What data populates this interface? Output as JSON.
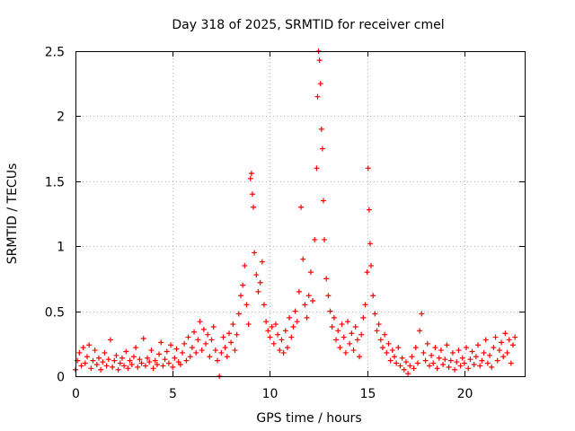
{
  "chart_data": {
    "type": "scatter",
    "title": "Day 318 of 2025, SRMTID for receiver cmel",
    "xlabel": "GPS time / hours",
    "ylabel": "SRMTID / TECUs",
    "xlim": [
      0,
      23.1
    ],
    "ylim": [
      0,
      2.5
    ],
    "xticks": [
      0,
      5,
      10,
      15,
      20
    ],
    "xtick_labels": [
      "0",
      "5",
      "10",
      "15",
      "20"
    ],
    "yticks": [
      0,
      0.5,
      1,
      1.5,
      2,
      2.5
    ],
    "ytick_labels": [
      "0",
      "0.5",
      "1",
      "1.5",
      "2",
      "2.5"
    ],
    "grid": true,
    "marker": "plus",
    "series": [
      {
        "name": "SRMTID",
        "color": "#ff0000",
        "points": [
          [
            0.0,
            0.05
          ],
          [
            0.1,
            0.12
          ],
          [
            0.2,
            0.18
          ],
          [
            0.3,
            0.08
          ],
          [
            0.4,
            0.22
          ],
          [
            0.5,
            0.1
          ],
          [
            0.6,
            0.15
          ],
          [
            0.7,
            0.24
          ],
          [
            0.8,
            0.06
          ],
          [
            0.9,
            0.12
          ],
          [
            1.0,
            0.2
          ],
          [
            1.1,
            0.09
          ],
          [
            1.2,
            0.14
          ],
          [
            1.3,
            0.05
          ],
          [
            1.4,
            0.11
          ],
          [
            1.5,
            0.18
          ],
          [
            1.6,
            0.08
          ],
          [
            1.7,
            0.13
          ],
          [
            1.8,
            0.28
          ],
          [
            1.9,
            0.07
          ],
          [
            2.0,
            0.12
          ],
          [
            2.1,
            0.16
          ],
          [
            2.2,
            0.05
          ],
          [
            2.3,
            0.1
          ],
          [
            2.4,
            0.14
          ],
          [
            2.5,
            0.08
          ],
          [
            2.6,
            0.19
          ],
          [
            2.7,
            0.06
          ],
          [
            2.8,
            0.12
          ],
          [
            2.9,
            0.09
          ],
          [
            3.0,
            0.15
          ],
          [
            3.1,
            0.22
          ],
          [
            3.2,
            0.07
          ],
          [
            3.3,
            0.13
          ],
          [
            3.4,
            0.1
          ],
          [
            3.5,
            0.29
          ],
          [
            3.6,
            0.08
          ],
          [
            3.7,
            0.14
          ],
          [
            3.8,
            0.11
          ],
          [
            3.9,
            0.2
          ],
          [
            4.0,
            0.06
          ],
          [
            4.1,
            0.12
          ],
          [
            4.2,
            0.09
          ],
          [
            4.3,
            0.17
          ],
          [
            4.4,
            0.26
          ],
          [
            4.5,
            0.08
          ],
          [
            4.6,
            0.13
          ],
          [
            4.7,
            0.19
          ],
          [
            4.8,
            0.1
          ],
          [
            4.9,
            0.24
          ],
          [
            5.0,
            0.07
          ],
          [
            5.1,
            0.14
          ],
          [
            5.2,
            0.21
          ],
          [
            5.3,
            0.11
          ],
          [
            5.4,
            0.09
          ],
          [
            5.5,
            0.18
          ],
          [
            5.6,
            0.25
          ],
          [
            5.7,
            0.12
          ],
          [
            5.8,
            0.3
          ],
          [
            5.9,
            0.15
          ],
          [
            6.0,
            0.22
          ],
          [
            6.1,
            0.34
          ],
          [
            6.2,
            0.18
          ],
          [
            6.3,
            0.28
          ],
          [
            6.4,
            0.42
          ],
          [
            6.5,
            0.2
          ],
          [
            6.6,
            0.36
          ],
          [
            6.7,
            0.25
          ],
          [
            6.8,
            0.32
          ],
          [
            6.9,
            0.15
          ],
          [
            7.0,
            0.28
          ],
          [
            7.1,
            0.38
          ],
          [
            7.2,
            0.2
          ],
          [
            7.3,
            0.12
          ],
          [
            7.4,
            0.0
          ],
          [
            7.5,
            0.18
          ],
          [
            7.6,
            0.3
          ],
          [
            7.7,
            0.22
          ],
          [
            7.8,
            0.15
          ],
          [
            7.9,
            0.33
          ],
          [
            8.0,
            0.26
          ],
          [
            8.1,
            0.4
          ],
          [
            8.2,
            0.2
          ],
          [
            8.3,
            0.32
          ],
          [
            8.4,
            0.48
          ],
          [
            8.5,
            0.62
          ],
          [
            8.6,
            0.7
          ],
          [
            8.7,
            0.85
          ],
          [
            8.8,
            0.55
          ],
          [
            8.9,
            0.4
          ],
          [
            9.0,
            1.52
          ],
          [
            9.05,
            1.56
          ],
          [
            9.1,
            1.4
          ],
          [
            9.15,
            1.3
          ],
          [
            9.2,
            0.95
          ],
          [
            9.3,
            0.78
          ],
          [
            9.4,
            0.65
          ],
          [
            9.5,
            0.72
          ],
          [
            9.6,
            0.88
          ],
          [
            9.7,
            0.55
          ],
          [
            9.8,
            0.42
          ],
          [
            9.9,
            0.35
          ],
          [
            10.0,
            0.3
          ],
          [
            10.1,
            0.38
          ],
          [
            10.2,
            0.25
          ],
          [
            10.3,
            0.4
          ],
          [
            10.4,
            0.32
          ],
          [
            10.5,
            0.2
          ],
          [
            10.6,
            0.28
          ],
          [
            10.7,
            0.18
          ],
          [
            10.8,
            0.35
          ],
          [
            10.9,
            0.22
          ],
          [
            11.0,
            0.45
          ],
          [
            11.1,
            0.3
          ],
          [
            11.2,
            0.38
          ],
          [
            11.3,
            0.5
          ],
          [
            11.4,
            0.42
          ],
          [
            11.5,
            0.65
          ],
          [
            11.6,
            1.3
          ],
          [
            11.7,
            0.9
          ],
          [
            11.8,
            0.55
          ],
          [
            11.9,
            0.45
          ],
          [
            12.0,
            0.62
          ],
          [
            12.1,
            0.8
          ],
          [
            12.2,
            0.58
          ],
          [
            12.3,
            1.05
          ],
          [
            12.4,
            1.6
          ],
          [
            12.45,
            2.15
          ],
          [
            12.5,
            2.5
          ],
          [
            12.55,
            2.43
          ],
          [
            12.6,
            2.25
          ],
          [
            12.65,
            1.9
          ],
          [
            12.7,
            1.75
          ],
          [
            12.75,
            1.35
          ],
          [
            12.8,
            1.05
          ],
          [
            12.9,
            0.75
          ],
          [
            13.0,
            0.62
          ],
          [
            13.1,
            0.5
          ],
          [
            13.2,
            0.38
          ],
          [
            13.3,
            0.45
          ],
          [
            13.4,
            0.28
          ],
          [
            13.5,
            0.35
          ],
          [
            13.6,
            0.22
          ],
          [
            13.7,
            0.4
          ],
          [
            13.8,
            0.3
          ],
          [
            13.9,
            0.18
          ],
          [
            14.0,
            0.42
          ],
          [
            14.1,
            0.25
          ],
          [
            14.2,
            0.33
          ],
          [
            14.3,
            0.2
          ],
          [
            14.4,
            0.38
          ],
          [
            14.5,
            0.28
          ],
          [
            14.6,
            0.15
          ],
          [
            14.7,
            0.32
          ],
          [
            14.8,
            0.45
          ],
          [
            14.9,
            0.55
          ],
          [
            15.0,
            0.8
          ],
          [
            15.05,
            1.6
          ],
          [
            15.1,
            1.28
          ],
          [
            15.15,
            1.02
          ],
          [
            15.2,
            0.85
          ],
          [
            15.3,
            0.62
          ],
          [
            15.4,
            0.48
          ],
          [
            15.5,
            0.35
          ],
          [
            15.6,
            0.4
          ],
          [
            15.7,
            0.28
          ],
          [
            15.8,
            0.22
          ],
          [
            15.9,
            0.32
          ],
          [
            16.0,
            0.18
          ],
          [
            16.1,
            0.25
          ],
          [
            16.2,
            0.12
          ],
          [
            16.3,
            0.2
          ],
          [
            16.4,
            0.15
          ],
          [
            16.5,
            0.1
          ],
          [
            16.6,
            0.22
          ],
          [
            16.7,
            0.08
          ],
          [
            16.8,
            0.14
          ],
          [
            16.9,
            0.05
          ],
          [
            17.0,
            0.11
          ],
          [
            17.1,
            0.02
          ],
          [
            17.2,
            0.08
          ],
          [
            17.3,
            0.15
          ],
          [
            17.4,
            0.06
          ],
          [
            17.5,
            0.22
          ],
          [
            17.6,
            0.1
          ],
          [
            17.7,
            0.35
          ],
          [
            17.8,
            0.48
          ],
          [
            17.9,
            0.18
          ],
          [
            18.0,
            0.12
          ],
          [
            18.1,
            0.25
          ],
          [
            18.2,
            0.08
          ],
          [
            18.3,
            0.16
          ],
          [
            18.4,
            0.1
          ],
          [
            18.5,
            0.22
          ],
          [
            18.6,
            0.06
          ],
          [
            18.7,
            0.14
          ],
          [
            18.8,
            0.2
          ],
          [
            18.9,
            0.09
          ],
          [
            19.0,
            0.13
          ],
          [
            19.1,
            0.24
          ],
          [
            19.2,
            0.07
          ],
          [
            19.3,
            0.12
          ],
          [
            19.4,
            0.18
          ],
          [
            19.5,
            0.05
          ],
          [
            19.6,
            0.11
          ],
          [
            19.7,
            0.2
          ],
          [
            19.8,
            0.08
          ],
          [
            19.9,
            0.14
          ],
          [
            20.0,
            0.1
          ],
          [
            20.1,
            0.22
          ],
          [
            20.2,
            0.06
          ],
          [
            20.3,
            0.13
          ],
          [
            20.4,
            0.19
          ],
          [
            20.5,
            0.09
          ],
          [
            20.6,
            0.15
          ],
          [
            20.7,
            0.24
          ],
          [
            20.8,
            0.08
          ],
          [
            20.9,
            0.12
          ],
          [
            21.0,
            0.18
          ],
          [
            21.1,
            0.28
          ],
          [
            21.2,
            0.1
          ],
          [
            21.3,
            0.16
          ],
          [
            21.4,
            0.07
          ],
          [
            21.5,
            0.22
          ],
          [
            21.6,
            0.3
          ],
          [
            21.7,
            0.12
          ],
          [
            21.8,
            0.2
          ],
          [
            21.9,
            0.26
          ],
          [
            22.0,
            0.15
          ],
          [
            22.1,
            0.33
          ],
          [
            22.2,
            0.18
          ],
          [
            22.3,
            0.28
          ],
          [
            22.4,
            0.1
          ],
          [
            22.5,
            0.24
          ],
          [
            22.6,
            0.3
          ]
        ]
      }
    ]
  }
}
